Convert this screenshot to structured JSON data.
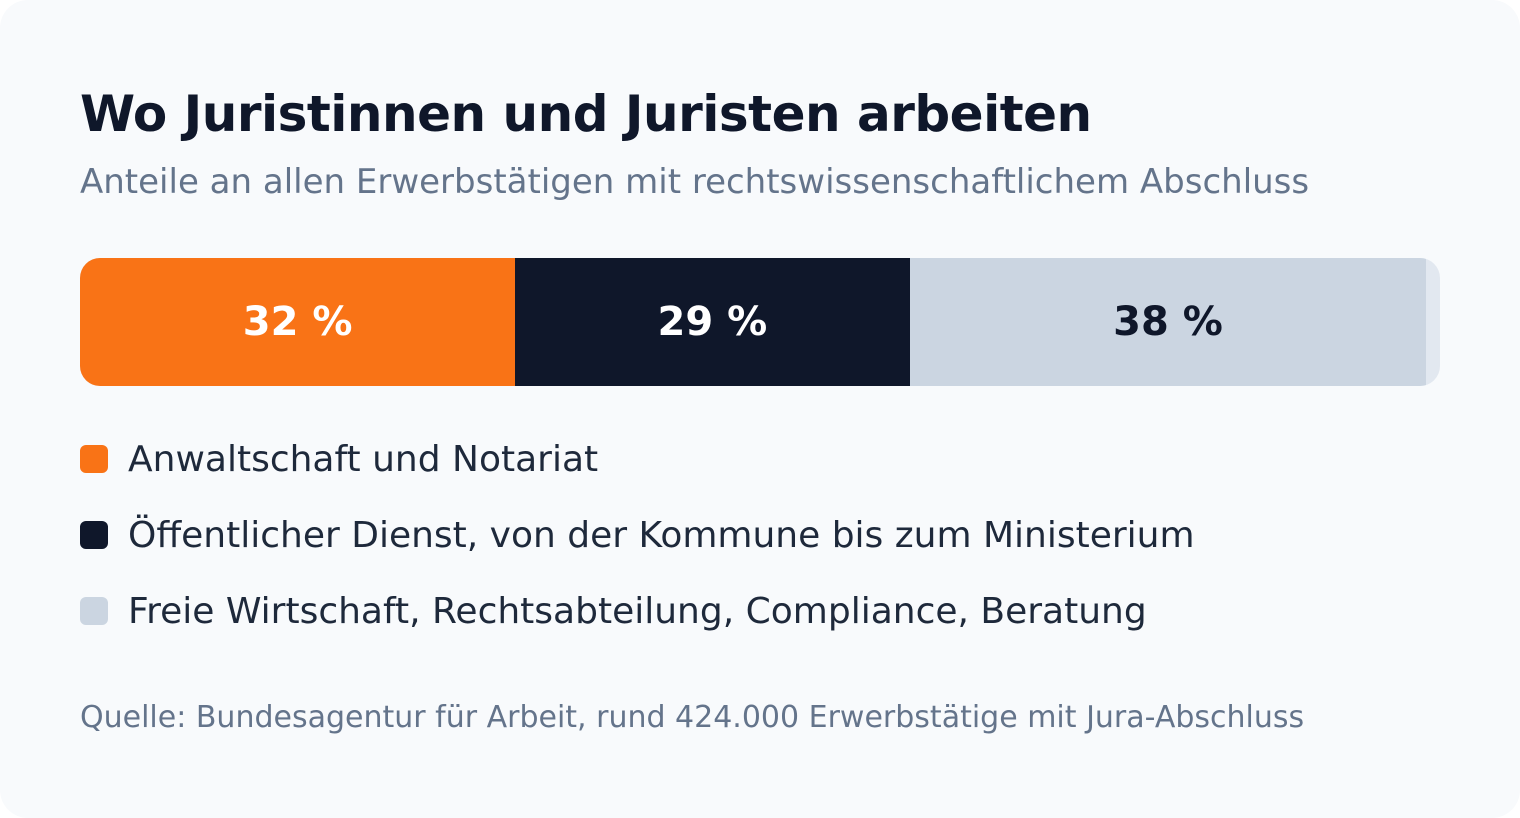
{
  "chart_data": {
    "type": "bar",
    "orientation": "horizontal-stacked",
    "title": "Wo Juristinnen und Juristen arbeiten",
    "subtitle": "Anteile an allen Erwerbstätigen mit rechtswissenschaftlichem Abschluss",
    "unit": "%",
    "series": [
      {
        "name": "Anwaltschaft und Notariat",
        "value": 32,
        "label": "32 %",
        "color": "#f97316",
        "text_color": "#ffffff"
      },
      {
        "name": "Öffentlicher Dienst, von der Kommune bis zum Ministerium",
        "value": 29,
        "label": "29 %",
        "color": "#0f172a",
        "text_color": "#ffffff"
      },
      {
        "name": "Freie Wirtschaft, Rechtsabteilung, Compliance, Beratung",
        "value": 38,
        "label": "38 %",
        "color": "#cbd5e1",
        "text_color": "#0f172a"
      }
    ],
    "total": 100,
    "track_color": "#e2e8f0",
    "legend_position": "bottom",
    "source": "Quelle: Bundesagentur für Arbeit, rund 424.000 Erwerbstätige mit Jura-Abschluss"
  }
}
